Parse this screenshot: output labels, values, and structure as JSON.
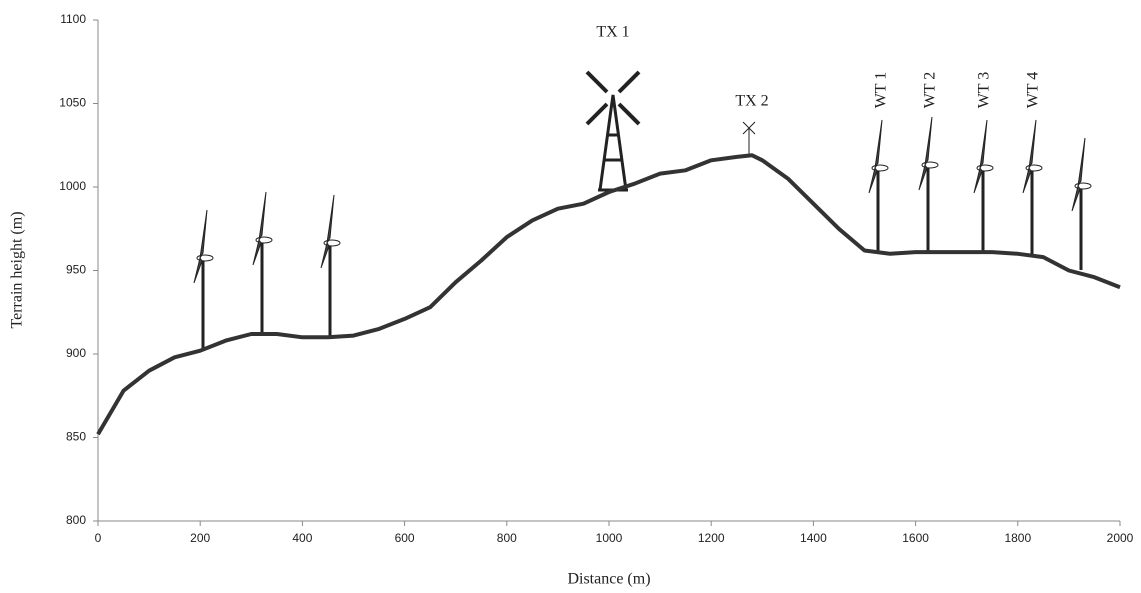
{
  "chart_data": {
    "type": "line",
    "x_label": "Distance (m)",
    "y_label": "Terrain height (m)",
    "x": [
      0,
      50,
      100,
      150,
      200,
      250,
      300,
      350,
      400,
      450,
      500,
      550,
      600,
      650,
      700,
      750,
      800,
      850,
      900,
      950,
      1000,
      1050,
      1100,
      1150,
      1200,
      1250,
      1280,
      1300,
      1350,
      1400,
      1450,
      1500,
      1550,
      1600,
      1650,
      1700,
      1750,
      1800,
      1850,
      1900,
      1950,
      2000
    ],
    "values": [
      852,
      878,
      890,
      898,
      902,
      908,
      912,
      912,
      910,
      910,
      911,
      915,
      921,
      928,
      943,
      956,
      970,
      980,
      987,
      990,
      997,
      1002,
      1008,
      1010,
      1016,
      1018,
      1019,
      1016,
      1005,
      990,
      975,
      962,
      960,
      961,
      961,
      961,
      961,
      960,
      958,
      950,
      946,
      940
    ],
    "color": "#333333",
    "xlim": [
      0,
      2000
    ],
    "xticks": [
      0,
      200,
      400,
      600,
      800,
      1000,
      1200,
      1400,
      1600,
      1800,
      2000
    ],
    "ylim": [
      800,
      1100
    ],
    "yticks": [
      800,
      850,
      900,
      950,
      1000,
      1050,
      1100
    ],
    "grid": false,
    "annotations": [
      "TX 1",
      "TX 2",
      "WT 1",
      "WT 2",
      "WT 3",
      "WT 4"
    ]
  }
}
